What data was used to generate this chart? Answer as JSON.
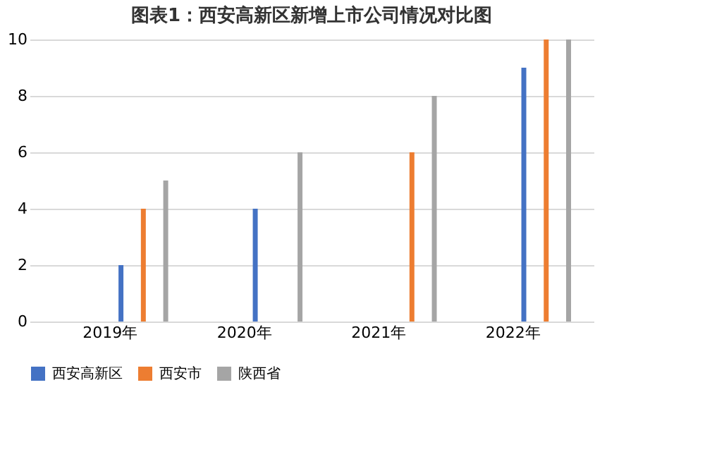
{
  "chart_data": {
    "type": "bar",
    "title": "图表1：西安高新区新增上市公司情况对比图",
    "categories": [
      "2019年",
      "2020年",
      "2021年",
      "2022年"
    ],
    "series": [
      {
        "name": "西安高新区",
        "color": "#4472c4",
        "values": [
          2,
          4,
          null,
          9
        ]
      },
      {
        "name": "西安市",
        "color": "#ed7d31",
        "values": [
          4,
          null,
          6,
          10
        ]
      },
      {
        "name": "陕西省",
        "color": "#a5a5a5",
        "values": [
          5,
          6,
          8,
          10
        ]
      }
    ],
    "ylim": [
      0,
      10
    ],
    "yticks": [
      0,
      2,
      4,
      6,
      8,
      10
    ],
    "grid": "y",
    "legend": "bottom"
  }
}
